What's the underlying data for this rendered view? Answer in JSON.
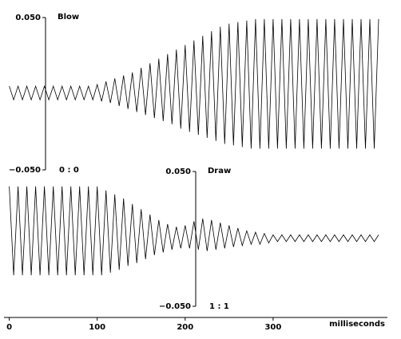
{
  "chart_data": [
    {
      "type": "line",
      "title": "Blow",
      "annotation": "0 : 0",
      "color": "#000000",
      "ylim": [
        -0.05,
        0.05
      ],
      "yticks": [
        {
          "value": 0.05,
          "label": "0.050"
        },
        {
          "value": -0.05,
          "label": "−0.050"
        }
      ],
      "xlim": [
        -6,
        430
      ],
      "x": [
        0,
        5,
        10,
        15,
        20,
        25,
        30,
        35,
        40,
        45,
        50,
        55,
        60,
        65,
        70,
        75,
        80,
        85,
        90,
        95,
        100,
        105,
        110,
        115,
        120,
        125,
        130,
        135,
        140,
        145,
        150,
        155,
        160,
        165,
        170,
        175,
        180,
        185,
        190,
        195,
        200,
        205,
        210,
        215,
        220,
        225,
        230,
        235,
        240,
        245,
        250,
        255,
        260,
        265,
        270,
        275,
        280,
        285,
        290,
        295,
        300,
        305,
        310,
        315,
        320,
        325,
        330,
        335,
        340,
        345,
        350,
        355,
        360,
        365,
        370,
        375,
        380,
        385,
        390,
        395,
        400,
        405,
        410,
        415,
        420
      ],
      "values": [
        0.005,
        -0.004,
        0.005,
        -0.004,
        0.005,
        -0.004,
        0.005,
        -0.004,
        0.005,
        -0.004,
        0.005,
        -0.004,
        0.005,
        -0.004,
        0.005,
        -0.004,
        0.005,
        -0.004,
        0.005,
        -0.004,
        0.006,
        -0.005,
        0.008,
        -0.006,
        0.01,
        -0.008,
        0.012,
        -0.01,
        0.014,
        -0.012,
        0.017,
        -0.014,
        0.02,
        -0.016,
        0.023,
        -0.018,
        0.026,
        -0.02,
        0.029,
        -0.023,
        0.032,
        -0.025,
        0.035,
        -0.027,
        0.038,
        -0.029,
        0.041,
        -0.031,
        0.044,
        -0.033,
        0.046,
        -0.034,
        0.047,
        -0.035,
        0.048,
        -0.036,
        0.049,
        -0.036,
        0.049,
        -0.036,
        0.049,
        -0.036,
        0.049,
        -0.036,
        0.049,
        -0.036,
        0.049,
        -0.036,
        0.049,
        -0.036,
        0.049,
        -0.036,
        0.049,
        -0.036,
        0.049,
        -0.036,
        0.049,
        -0.036,
        0.049,
        -0.036,
        0.049,
        -0.036,
        0.049,
        -0.036,
        0.049
      ]
    },
    {
      "type": "line",
      "title": "Draw",
      "annotation": "1 : 1",
      "color": "#000000",
      "ylim": [
        -0.05,
        0.05
      ],
      "yticks": [
        {
          "value": 0.05,
          "label": "0.050"
        },
        {
          "value": -0.05,
          "label": "−0.050"
        }
      ],
      "xlim": [
        -6,
        430
      ],
      "xticks": [
        0,
        100,
        200,
        300
      ],
      "xlabel": "milliseconds",
      "x": [
        0,
        5,
        10,
        15,
        20,
        25,
        30,
        35,
        40,
        45,
        50,
        55,
        60,
        65,
        70,
        75,
        80,
        85,
        90,
        95,
        100,
        105,
        110,
        115,
        120,
        125,
        130,
        135,
        140,
        145,
        150,
        155,
        160,
        165,
        170,
        175,
        180,
        185,
        190,
        195,
        200,
        205,
        210,
        215,
        220,
        225,
        230,
        235,
        240,
        245,
        250,
        255,
        260,
        265,
        270,
        275,
        280,
        285,
        290,
        295,
        300,
        305,
        310,
        315,
        320,
        325,
        330,
        335,
        340,
        345,
        350,
        355,
        360,
        365,
        370,
        375,
        380,
        385,
        390,
        395,
        400,
        405,
        410,
        415,
        420
      ],
      "values": [
        0.039,
        -0.027,
        0.039,
        -0.027,
        0.039,
        -0.027,
        0.039,
        -0.027,
        0.039,
        -0.027,
        0.039,
        -0.027,
        0.039,
        -0.027,
        0.039,
        -0.027,
        0.039,
        -0.027,
        0.039,
        -0.027,
        0.039,
        -0.027,
        0.036,
        -0.025,
        0.033,
        -0.023,
        0.03,
        -0.02,
        0.026,
        -0.018,
        0.022,
        -0.015,
        0.018,
        -0.012,
        0.014,
        -0.01,
        0.011,
        -0.008,
        0.009,
        -0.007,
        0.01,
        -0.007,
        0.013,
        -0.008,
        0.015,
        -0.009,
        0.014,
        -0.008,
        0.012,
        -0.007,
        0.01,
        -0.006,
        0.008,
        -0.005,
        0.006,
        -0.004,
        0.005,
        -0.004,
        0.004,
        -0.003,
        0.003,
        -0.002,
        0.003,
        -0.002,
        0.003,
        -0.002,
        0.003,
        -0.002,
        0.003,
        -0.002,
        0.003,
        -0.002,
        0.003,
        -0.002,
        0.003,
        -0.002,
        0.003,
        -0.002,
        0.003,
        -0.002,
        0.003,
        -0.002,
        0.003,
        -0.002,
        0.003
      ]
    }
  ]
}
